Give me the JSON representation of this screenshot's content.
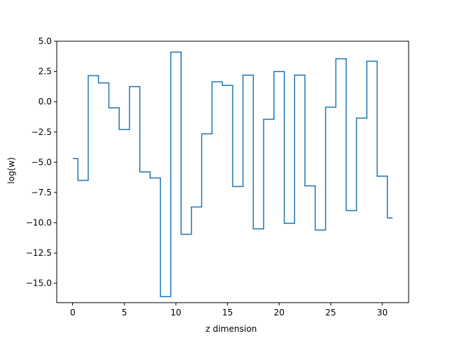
{
  "chart_data": {
    "type": "line",
    "drawstyle": "steps-mid",
    "title": "",
    "xlabel": "z dimension",
    "ylabel": "log(w)",
    "xlim": [
      -1.55,
      32.55
    ],
    "ylim": [
      -16.6,
      5.0
    ],
    "grid": false,
    "xticks": [
      0,
      5,
      10,
      15,
      20,
      25,
      30
    ],
    "xtick_labels": [
      "0",
      "5",
      "10",
      "15",
      "20",
      "25",
      "30"
    ],
    "yticks": [
      5.0,
      2.5,
      0.0,
      -2.5,
      -5.0,
      -7.5,
      -10.0,
      -12.5,
      -15.0
    ],
    "ytick_labels": [
      "5.0",
      "2.5",
      "0.0",
      "−2.5",
      "−5.0",
      "−7.5",
      "−10.0",
      "−12.5",
      "−15.0"
    ],
    "line_color": "#1f77b4",
    "series": [
      {
        "x": [
          0,
          1,
          2,
          3,
          4,
          5,
          6,
          7,
          8,
          9,
          10,
          11,
          12,
          13,
          14,
          15,
          16,
          17,
          18,
          19,
          20,
          21,
          22,
          23,
          24,
          25,
          26,
          27,
          28,
          29,
          30,
          31
        ],
        "values": [
          -4.7,
          -6.5,
          2.15,
          1.55,
          -0.5,
          -2.3,
          1.25,
          -5.8,
          -6.3,
          -16.1,
          4.1,
          -10.95,
          -8.7,
          -2.65,
          1.65,
          1.35,
          -7.0,
          2.2,
          -10.5,
          -1.45,
          2.5,
          -10.05,
          2.2,
          -6.95,
          -10.6,
          -0.45,
          3.55,
          -9.0,
          -1.35,
          3.35,
          -6.15,
          -9.6
        ]
      }
    ]
  }
}
